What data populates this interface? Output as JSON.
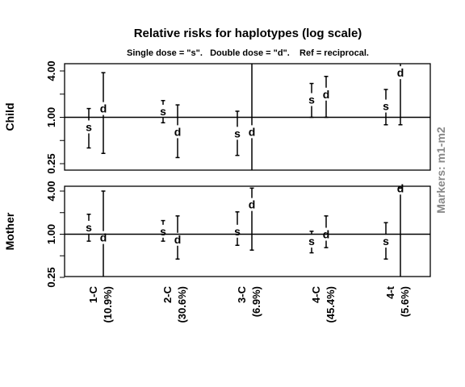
{
  "chart_data": {
    "type": "errorbar",
    "title": "Relative risks for haplotypes (log scale)",
    "subtitle": "Single dose = \"s\".   Double dose = \"d\".    Ref = reciprocal.",
    "side_label": "Markers: m1-m2",
    "log_scale": true,
    "yticks": [
      0.25,
      1.0,
      4.0
    ],
    "ytick_labels": [
      "0.25",
      "1.00",
      "4.00"
    ],
    "categories": [
      {
        "name": "1-C",
        "freq": "(10.9%)"
      },
      {
        "name": "2-C",
        "freq": "(30.6%)"
      },
      {
        "name": "3-C",
        "freq": "(6.9%)"
      },
      {
        "name": "4-C",
        "freq": "(45.4%)"
      },
      {
        "name": "4-t",
        "freq": "(5.6%)"
      }
    ],
    "panels": [
      {
        "label": "Child",
        "ylim": [
          0.21,
          5.0
        ],
        "points": [
          {
            "cat": 0,
            "marker": "s",
            "est": 0.75,
            "lo": 0.4,
            "hi": 1.3
          },
          {
            "cat": 0,
            "marker": "d",
            "est": 1.3,
            "lo": 0.34,
            "hi": 3.8
          },
          {
            "cat": 1,
            "marker": "s",
            "est": 1.2,
            "lo": 0.85,
            "hi": 1.65
          },
          {
            "cat": 1,
            "marker": "d",
            "est": 0.65,
            "lo": 0.3,
            "hi": 1.45
          },
          {
            "cat": 2,
            "marker": "s",
            "est": 0.62,
            "lo": 0.32,
            "hi": 1.2
          },
          {
            "cat": 2,
            "marker": "d",
            "est": 0.65,
            "lo": 0.2,
            "hi": 5.0
          },
          {
            "cat": 3,
            "marker": "s",
            "est": 1.7,
            "lo": 1.0,
            "hi": 2.75
          },
          {
            "cat": 3,
            "marker": "d",
            "est": 2.0,
            "lo": 1.0,
            "hi": 3.4
          },
          {
            "cat": 4,
            "marker": "s",
            "est": 1.4,
            "lo": 0.8,
            "hi": 2.3
          },
          {
            "cat": 4,
            "marker": "d",
            "est": 3.8,
            "lo": 0.8,
            "hi": 5.0
          }
        ]
      },
      {
        "label": "Mother",
        "ylim": [
          0.21,
          4.4
        ],
        "points": [
          {
            "cat": 0,
            "marker": "s",
            "est": 1.25,
            "lo": 0.8,
            "hi": 1.9
          },
          {
            "cat": 0,
            "marker": "d",
            "est": 0.9,
            "lo": 0.21,
            "hi": 4.0
          },
          {
            "cat": 1,
            "marker": "s",
            "est": 1.1,
            "lo": 0.8,
            "hi": 1.55
          },
          {
            "cat": 1,
            "marker": "d",
            "est": 0.85,
            "lo": 0.45,
            "hi": 1.8
          },
          {
            "cat": 2,
            "marker": "s",
            "est": 1.1,
            "lo": 0.7,
            "hi": 2.05
          },
          {
            "cat": 2,
            "marker": "d",
            "est": 2.6,
            "lo": 0.6,
            "hi": 4.4
          },
          {
            "cat": 3,
            "marker": "s",
            "est": 0.8,
            "lo": 0.55,
            "hi": 1.1
          },
          {
            "cat": 3,
            "marker": "d",
            "est": 1.0,
            "lo": 0.65,
            "hi": 1.8
          },
          {
            "cat": 4,
            "marker": "s",
            "est": 0.8,
            "lo": 0.45,
            "hi": 1.45
          },
          {
            "cat": 4,
            "marker": "d",
            "est": 4.4,
            "lo": 0.21,
            "hi": 4.4
          }
        ]
      }
    ]
  }
}
